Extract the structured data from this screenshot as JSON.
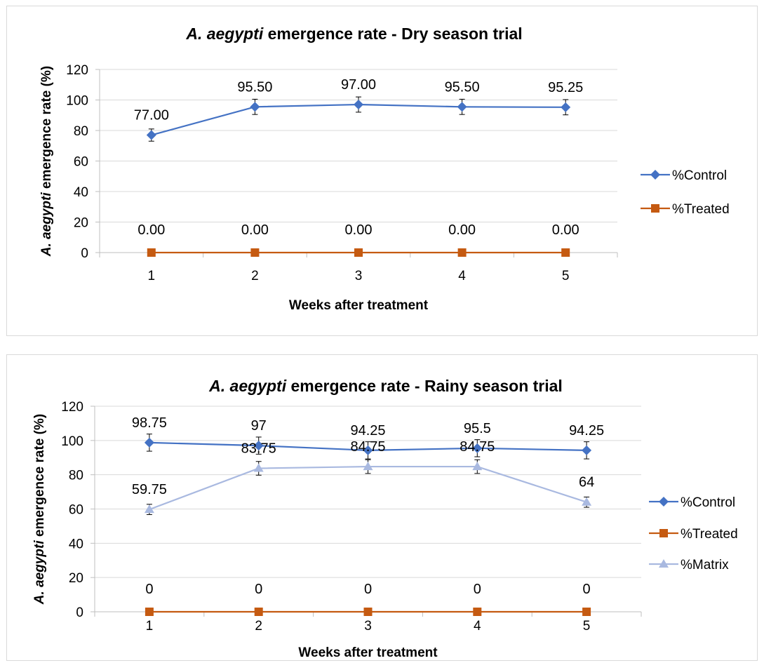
{
  "chart_data": [
    {
      "type": "line",
      "title_italic": "A. aegypti",
      "title_rest": " emergence rate - Dry season trial",
      "xlabel": "Weeks after treatment",
      "ylabel_italic": "A. aegypti",
      "ylabel_rest": " emergence rate (%)",
      "categories": [
        "1",
        "2",
        "3",
        "4",
        "5"
      ],
      "ylim": [
        0,
        120
      ],
      "yticks": [
        0,
        20,
        40,
        60,
        80,
        100,
        120
      ],
      "grid": true,
      "legend_position": "right",
      "series": [
        {
          "name": "%Control",
          "color": "#4472c4",
          "marker": "diamond",
          "values": [
            77.0,
            95.5,
            97.0,
            95.5,
            95.25
          ],
          "labels": [
            "77.00",
            "95.50",
            "97.00",
            "95.50",
            "95.25"
          ],
          "error": [
            4,
            5,
            5,
            5,
            5
          ]
        },
        {
          "name": "%Treated",
          "color": "#c55a11",
          "marker": "square",
          "values": [
            0,
            0,
            0,
            0,
            0
          ],
          "labels": [
            "0.00",
            "0.00",
            "0.00",
            "0.00",
            "0.00"
          ],
          "error": [
            0,
            0,
            0,
            0,
            0
          ]
        }
      ]
    },
    {
      "type": "line",
      "title_italic": "A. aegypti",
      "title_rest": " emergence rate - Rainy season trial",
      "xlabel": "Weeks after treatment",
      "ylabel_italic": "A. aegypti",
      "ylabel_rest": " emergence rate (%)",
      "categories": [
        "1",
        "2",
        "3",
        "4",
        "5"
      ],
      "ylim": [
        0,
        120
      ],
      "yticks": [
        0,
        20,
        40,
        60,
        80,
        100,
        120
      ],
      "grid": true,
      "legend_position": "right",
      "series": [
        {
          "name": "%Control",
          "color": "#4472c4",
          "marker": "diamond",
          "values": [
            98.75,
            97,
            94.25,
            95.5,
            94.25
          ],
          "labels": [
            "98.75",
            "97",
            "94.25",
            "95.5",
            "94.25"
          ],
          "error": [
            5,
            5,
            5,
            5,
            5
          ]
        },
        {
          "name": "%Treated",
          "color": "#c55a11",
          "marker": "square",
          "values": [
            0,
            0,
            0,
            0,
            0
          ],
          "labels": [
            "0",
            "0",
            "0",
            "0",
            "0"
          ],
          "error": [
            0,
            0,
            0,
            0,
            0
          ]
        },
        {
          "name": "%Matrix",
          "color": "#a9b9e0",
          "marker": "triangle",
          "values": [
            59.75,
            83.75,
            84.75,
            84.75,
            64
          ],
          "labels": [
            "59.75",
            "83.75",
            "84.75",
            "84.75",
            "64"
          ],
          "error": [
            3,
            4,
            4,
            4,
            3
          ]
        }
      ]
    }
  ]
}
